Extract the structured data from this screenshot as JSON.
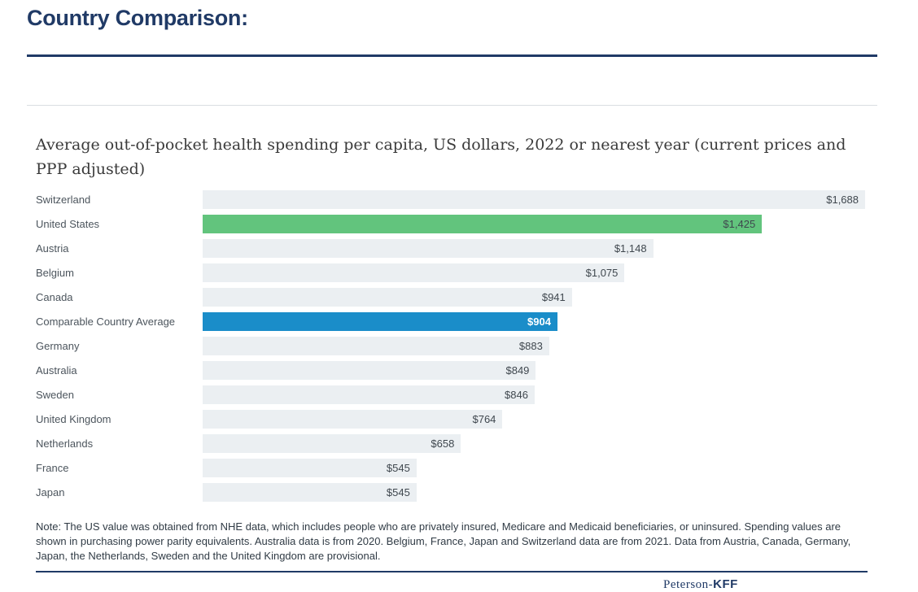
{
  "page": {
    "title": "Country Comparison:"
  },
  "chart_data": {
    "type": "bar",
    "orientation": "horizontal",
    "title": "Average out-of-pocket health spending per capita, US dollars, 2022 or nearest year (current prices and PPP adjusted)",
    "xlabel": "",
    "ylabel": "",
    "xlim": [
      0,
      1688
    ],
    "grid": false,
    "legend": null,
    "categories": [
      "Switzerland",
      "United States",
      "Austria",
      "Belgium",
      "Canada",
      "Comparable Country Average",
      "Germany",
      "Australia",
      "Sweden",
      "United Kingdom",
      "Netherlands",
      "France",
      "Japan"
    ],
    "values": [
      1688,
      1425,
      1148,
      1075,
      941,
      904,
      883,
      849,
      846,
      764,
      658,
      545,
      545
    ],
    "display_values": [
      "$1,688",
      "$1,425",
      "$1,148",
      "$1,075",
      "$941",
      "$904",
      "$883",
      "$849",
      "$846",
      "$764",
      "$658",
      "$545",
      "$545"
    ],
    "bar_variants": [
      "default",
      "us",
      "default",
      "default",
      "default",
      "average",
      "default",
      "default",
      "default",
      "default",
      "default",
      "default",
      "default"
    ]
  },
  "note": {
    "text": "Note:  The US value was obtained from NHE data, which includes people who are privately insured, Medicare and Medicaid beneficiaries, or uninsured. Spending values are shown in purchasing power parity equivalents. Australia data is from 2020. Belgium, France, Japan and Switzerland data are from 2021. Data from Austria, Canada, Germany, Japan, the Netherlands, Sweden and the United Kingdom are provisional."
  },
  "footer": {
    "logo_serif": "Peterson-",
    "logo_bold": "KFF"
  },
  "colors": {
    "navy": "#203A66",
    "bar_default": "#EBEFF2",
    "bar_us": "#62C47D",
    "bar_average": "#1A8DC9",
    "label_text": "#4C555D",
    "value_text": "#3F474E",
    "average_value_text": "#FFFFFF"
  }
}
